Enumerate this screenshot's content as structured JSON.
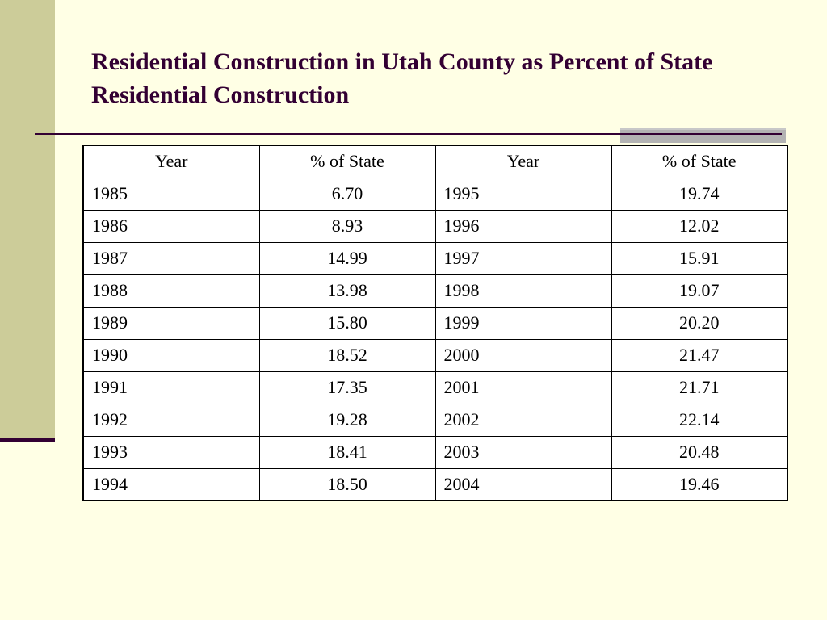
{
  "slide": {
    "title": "Residential Construction in Utah County as Percent of State Residential Construction",
    "colors": {
      "background": "#ffffe5",
      "side_bar": "#cccc99",
      "accent_dark": "#330033",
      "accent_gray": "#b3b3b3"
    }
  },
  "table": {
    "headers": [
      "Year",
      "% of State",
      "Year",
      "% of State"
    ],
    "rows": [
      [
        "1985",
        "6.70",
        "1995",
        "19.74"
      ],
      [
        "1986",
        "8.93",
        "1996",
        "12.02"
      ],
      [
        "1987",
        "14.99",
        "1997",
        "15.91"
      ],
      [
        "1988",
        "13.98",
        "1998",
        "19.07"
      ],
      [
        "1989",
        "15.80",
        "1999",
        "20.20"
      ],
      [
        "1990",
        "18.52",
        "2000",
        "21.47"
      ],
      [
        "1991",
        "17.35",
        "2001",
        "21.71"
      ],
      [
        "1992",
        "19.28",
        "2002",
        "22.14"
      ],
      [
        "1993",
        "18.41",
        "2003",
        "20.48"
      ],
      [
        "1994",
        "18.50",
        "2004",
        "19.46"
      ]
    ]
  }
}
